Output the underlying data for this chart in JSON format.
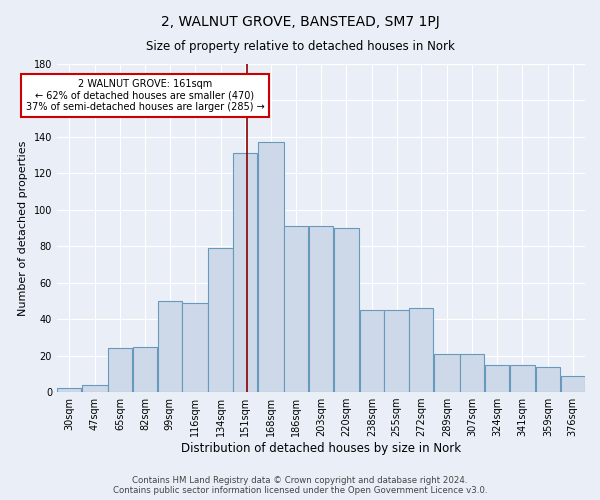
{
  "title": "2, WALNUT GROVE, BANSTEAD, SM7 1PJ",
  "subtitle": "Size of property relative to detached houses in Nork",
  "xlabel": "Distribution of detached houses by size in Nork",
  "ylabel": "Number of detached properties",
  "bar_color": "#cdd9e8",
  "bar_edge_color": "#6699bb",
  "categories": [
    "30sqm",
    "47sqm",
    "65sqm",
    "82sqm",
    "99sqm",
    "116sqm",
    "134sqm",
    "151sqm",
    "168sqm",
    "186sqm",
    "203sqm",
    "220sqm",
    "238sqm",
    "255sqm",
    "272sqm",
    "289sqm",
    "307sqm",
    "324sqm",
    "341sqm",
    "359sqm",
    "376sqm"
  ],
  "bar_heights": [
    2,
    4,
    24,
    25,
    50,
    49,
    79,
    131,
    137,
    91,
    91,
    90,
    45,
    45,
    46,
    21,
    21,
    15,
    15,
    14,
    9
  ],
  "bin_edges": [
    30,
    47,
    65,
    82,
    99,
    116,
    134,
    151,
    168,
    186,
    203,
    220,
    238,
    255,
    272,
    289,
    307,
    324,
    341,
    359,
    376,
    393
  ],
  "property_size": 161,
  "vline_color": "#8b0000",
  "annotation_text": "2 WALNUT GROVE: 161sqm\n← 62% of detached houses are smaller (470)\n37% of semi-detached houses are larger (285) →",
  "annotation_box_color": "#ffffff",
  "annotation_box_edge": "#cc0000",
  "ylim": [
    0,
    180
  ],
  "yticks": [
    0,
    20,
    40,
    60,
    80,
    100,
    120,
    140,
    160,
    180
  ],
  "background_color": "#eaeff7",
  "grid_color": "#ffffff",
  "footer": "Contains HM Land Registry data © Crown copyright and database right 2024.\nContains public sector information licensed under the Open Government Licence v3.0."
}
